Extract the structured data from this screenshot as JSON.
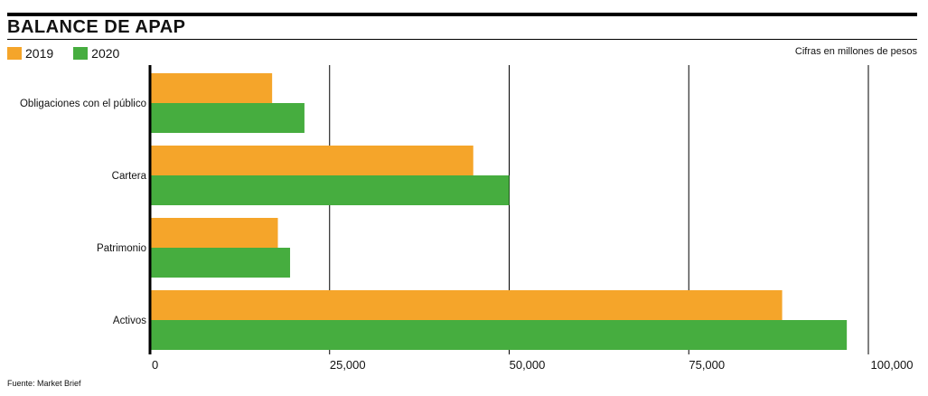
{
  "header": {
    "title": "BALANCE DE APAP",
    "units_note": "Cifras en millones de pesos"
  },
  "footer": {
    "source": "Fuente: Market Brief"
  },
  "colors": {
    "2019": "#F5A52A",
    "2020": "#46AD3F",
    "text": "#111111"
  },
  "chart_data": {
    "type": "bar",
    "orientation": "horizontal",
    "title": "BALANCE DE APAP",
    "xlabel": "",
    "ylabel": "",
    "categories": [
      "Obligaciones con el público",
      "Cartera",
      "Patrimonio",
      "Activos"
    ],
    "series": [
      {
        "name": "2019",
        "values": [
          17000,
          45000,
          17800,
          88000
        ]
      },
      {
        "name": "2020",
        "values": [
          21500,
          50000,
          19500,
          97000
        ]
      }
    ],
    "xlim": [
      0,
      100000
    ],
    "ticks": [
      0,
      25000,
      50000,
      75000,
      100000
    ],
    "tick_labels": [
      "0",
      "25,000",
      "50,000",
      "75,000",
      "100,000"
    ],
    "grid": "vertical",
    "legend_position": "top-left"
  }
}
